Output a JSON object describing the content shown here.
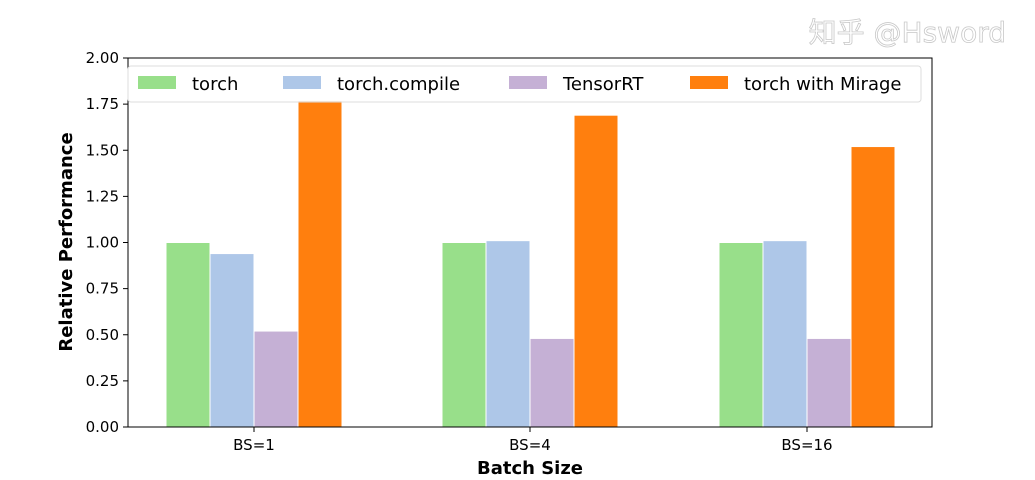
{
  "chart_data": {
    "type": "bar",
    "title": "",
    "xlabel": "Batch Size",
    "ylabel": "Relative Performance",
    "ylim": [
      0,
      2.0
    ],
    "yticks": [
      "0.00",
      "0.25",
      "0.50",
      "0.75",
      "1.00",
      "1.25",
      "1.50",
      "1.75",
      "2.00"
    ],
    "categories": [
      "BS=1",
      "BS=4",
      "BS=16"
    ],
    "series": [
      {
        "name": "torch",
        "color": "#98df8a",
        "values": [
          1.0,
          1.0,
          1.0
        ]
      },
      {
        "name": "torch.compile",
        "color": "#aec7e8",
        "values": [
          0.94,
          1.01,
          1.01
        ]
      },
      {
        "name": "TensorRT",
        "color": "#c5b0d5",
        "values": [
          0.52,
          0.48,
          0.48
        ]
      },
      {
        "name": "torch with Mirage",
        "color": "#ff7f0e",
        "values": [
          1.77,
          1.69,
          1.52
        ]
      }
    ],
    "legend_position": "top",
    "grid": false
  },
  "watermark": "知乎 @Hsword"
}
